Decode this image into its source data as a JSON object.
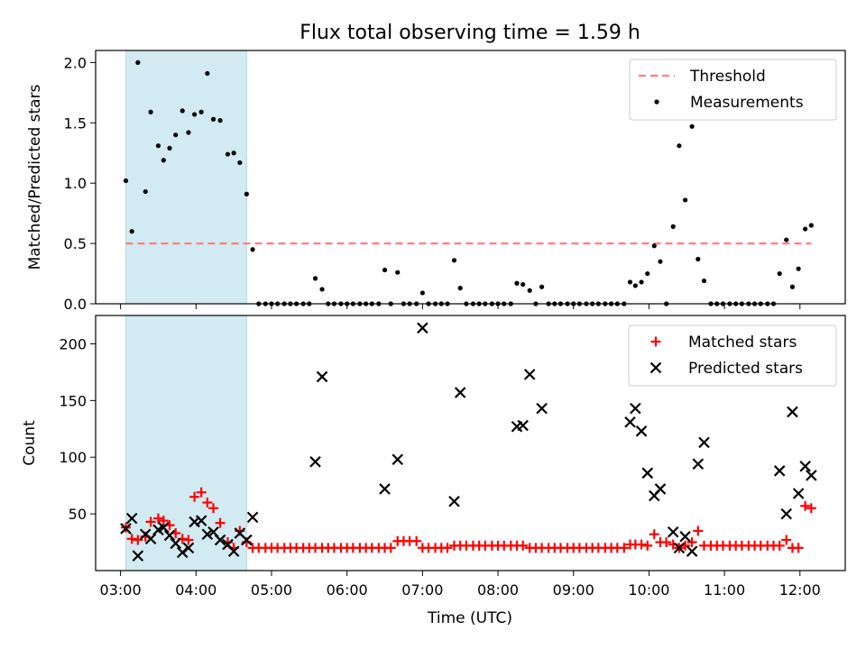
{
  "chart_data": {
    "title": "Flux total observing time = 1.59 h",
    "xlabel": "Time (UTC)",
    "x_unit": "hours (UTC)",
    "xlim": [
      2.67,
      12.6
    ],
    "xticks": [
      3,
      4,
      5,
      6,
      7,
      8,
      9,
      10,
      11,
      12
    ],
    "xtick_labels": [
      "03:00",
      "04:00",
      "05:00",
      "06:00",
      "07:00",
      "08:00",
      "09:00",
      "10:00",
      "11:00",
      "12:00"
    ],
    "panels": [
      {
        "type": "scatter",
        "ylabel": "Matched/Predicted stars",
        "ylim": [
          0,
          2.1
        ],
        "yticks": [
          0.0,
          0.5,
          1.0,
          1.5,
          2.0
        ],
        "ytick_labels": [
          "0.0",
          "0.5",
          "1.0",
          "1.5",
          "2.0"
        ],
        "legend_position": "top-right",
        "shaded_interval": [
          3.07,
          4.67
        ],
        "shade_color": "#add8e6",
        "series": [
          {
            "name": "Threshold",
            "kind": "dashed-line",
            "color": "#ff7f7f",
            "x": [
              3.07,
              12.15
            ],
            "y": [
              0.5,
              0.5
            ]
          },
          {
            "name": "Measurements",
            "kind": "scatter",
            "color": "#000000",
            "x": [
              3.07,
              3.15,
              3.23,
              3.33,
              3.4,
              3.5,
              3.57,
              3.65,
              3.73,
              3.82,
              3.9,
              3.98,
              4.07,
              4.15,
              4.23,
              4.32,
              4.42,
              4.5,
              4.58,
              4.67,
              4.75,
              4.83,
              4.92,
              5.0,
              5.08,
              5.17,
              5.25,
              5.33,
              5.42,
              5.5,
              5.58,
              5.67,
              5.75,
              5.83,
              5.92,
              6.0,
              6.08,
              6.17,
              6.25,
              6.33,
              6.42,
              6.5,
              6.58,
              6.67,
              6.75,
              6.83,
              6.92,
              7.0,
              7.08,
              7.17,
              7.25,
              7.33,
              7.42,
              7.5,
              7.58,
              7.67,
              7.75,
              7.83,
              7.92,
              8.0,
              8.08,
              8.17,
              8.25,
              8.33,
              8.42,
              8.5,
              8.58,
              8.67,
              8.75,
              8.83,
              8.92,
              9.0,
              9.08,
              9.17,
              9.25,
              9.33,
              9.42,
              9.5,
              9.58,
              9.67,
              9.75,
              9.82,
              9.9,
              9.98,
              10.07,
              10.15,
              10.23,
              10.32,
              10.4,
              10.48,
              10.57,
              10.65,
              10.73,
              10.82,
              10.9,
              10.98,
              11.07,
              11.15,
              11.23,
              11.32,
              11.4,
              11.48,
              11.57,
              11.65,
              11.73,
              11.82,
              11.9,
              11.98,
              12.07,
              12.15
            ],
            "y": [
              1.02,
              0.6,
              2.0,
              0.93,
              1.59,
              1.31,
              1.19,
              1.29,
              1.4,
              1.6,
              1.42,
              1.57,
              1.59,
              1.91,
              1.53,
              1.52,
              1.24,
              1.25,
              1.17,
              0.91,
              0.45,
              0.0,
              0.0,
              0.0,
              0.0,
              0.0,
              0.0,
              0.0,
              0.0,
              0.0,
              0.21,
              0.12,
              0.0,
              0.0,
              0.0,
              0.0,
              0.0,
              0.0,
              0.0,
              0.0,
              0.0,
              0.28,
              0.0,
              0.26,
              0.0,
              0.0,
              0.0,
              0.09,
              0.0,
              0.0,
              0.0,
              0.0,
              0.36,
              0.13,
              0.0,
              0.0,
              0.0,
              0.0,
              0.0,
              0.0,
              0.0,
              0.0,
              0.17,
              0.16,
              0.11,
              0.0,
              0.14,
              0.0,
              0.0,
              0.0,
              0.0,
              0.0,
              0.0,
              0.0,
              0.0,
              0.0,
              0.0,
              0.0,
              0.0,
              0.0,
              0.18,
              0.15,
              0.18,
              0.25,
              0.48,
              0.35,
              0.0,
              0.64,
              1.31,
              0.86,
              1.47,
              0.37,
              0.19,
              0.0,
              0.0,
              0.0,
              0.0,
              0.0,
              0.0,
              0.0,
              0.0,
              0.0,
              0.0,
              0.0,
              0.25,
              0.53,
              0.14,
              0.29,
              0.62,
              0.65
            ]
          }
        ]
      },
      {
        "type": "scatter",
        "ylabel": "Count",
        "ylim": [
          0,
          225
        ],
        "yticks": [
          50,
          100,
          150,
          200
        ],
        "ytick_labels": [
          "50",
          "100",
          "150",
          "200"
        ],
        "legend_position": "top-right",
        "shaded_interval": [
          3.07,
          4.67
        ],
        "shade_color": "#add8e6",
        "series": [
          {
            "name": "Matched stars",
            "kind": "plus",
            "color": "#ff0000",
            "x": [
              3.07,
              3.15,
              3.23,
              3.33,
              3.4,
              3.5,
              3.57,
              3.65,
              3.73,
              3.82,
              3.9,
              3.98,
              4.07,
              4.15,
              4.23,
              4.32,
              4.42,
              4.5,
              4.58,
              4.67,
              4.75,
              4.83,
              4.92,
              5.0,
              5.08,
              5.17,
              5.25,
              5.33,
              5.42,
              5.5,
              5.58,
              5.67,
              5.75,
              5.83,
              5.92,
              6.0,
              6.08,
              6.17,
              6.25,
              6.33,
              6.42,
              6.5,
              6.58,
              6.67,
              6.75,
              6.83,
              6.92,
              7.0,
              7.08,
              7.17,
              7.25,
              7.33,
              7.42,
              7.5,
              7.58,
              7.67,
              7.75,
              7.83,
              7.92,
              8.0,
              8.08,
              8.17,
              8.25,
              8.33,
              8.42,
              8.5,
              8.58,
              8.67,
              8.75,
              8.83,
              8.92,
              9.0,
              9.08,
              9.17,
              9.25,
              9.33,
              9.42,
              9.5,
              9.58,
              9.67,
              9.75,
              9.82,
              9.9,
              9.98,
              10.07,
              10.15,
              10.23,
              10.32,
              10.4,
              10.48,
              10.57,
              10.65,
              10.73,
              10.82,
              10.9,
              10.98,
              11.07,
              11.15,
              11.23,
              11.32,
              11.4,
              11.48,
              11.57,
              11.65,
              11.73,
              11.82,
              11.9,
              11.98,
              12.07,
              12.15
            ],
            "y": [
              38,
              28,
              27,
              30,
              43,
              46,
              44,
              40,
              33,
              28,
              27,
              65,
              69,
              60,
              55,
              42,
              25,
              20,
              35,
              25,
              20,
              20,
              20,
              20,
              20,
              20,
              20,
              20,
              20,
              20,
              20,
              20,
              20,
              20,
              20,
              20,
              20,
              20,
              20,
              20,
              20,
              20,
              20,
              26,
              26,
              26,
              26,
              20,
              20,
              20,
              20,
              20,
              22,
              22,
              22,
              22,
              22,
              22,
              22,
              22,
              22,
              22,
              22,
              22,
              20,
              20,
              20,
              20,
              20,
              20,
              20,
              20,
              20,
              20,
              20,
              20,
              20,
              20,
              20,
              20,
              23,
              23,
              23,
              22,
              32,
              25,
              25,
              23,
              20,
              22,
              25,
              35,
              22,
              22,
              22,
              22,
              22,
              22,
              22,
              22,
              22,
              22,
              22,
              22,
              22,
              27,
              20,
              20,
              57,
              55
            ]
          },
          {
            "name": "Predicted stars",
            "kind": "x",
            "color": "#000000",
            "x": [
              3.07,
              3.15,
              3.23,
              3.33,
              3.4,
              3.5,
              3.57,
              3.65,
              3.73,
              3.82,
              3.9,
              3.98,
              4.07,
              4.15,
              4.23,
              4.32,
              4.42,
              4.5,
              4.58,
              4.67,
              4.75,
              5.58,
              5.67,
              6.5,
              6.67,
              7.0,
              7.42,
              7.5,
              8.25,
              8.33,
              8.42,
              8.58,
              9.75,
              9.82,
              9.9,
              9.98,
              10.07,
              10.15,
              10.32,
              10.4,
              10.48,
              10.57,
              10.65,
              10.73,
              11.73,
              11.82,
              11.9,
              11.98,
              12.07,
              12.15
            ],
            "y": [
              37,
              46,
              13,
              32,
              28,
              36,
              38,
              31,
              24,
              16,
              20,
              43,
              44,
              32,
              34,
              27,
              23,
              17,
              33,
              27,
              47,
              96,
              171,
              72,
              98,
              214,
              61,
              157,
              127,
              128,
              173,
              143,
              131,
              143,
              123,
              86,
              66,
              72,
              34,
              20,
              30,
              17,
              94,
              113,
              88,
              50,
              140,
              68,
              92,
              84
            ]
          }
        ]
      }
    ]
  }
}
